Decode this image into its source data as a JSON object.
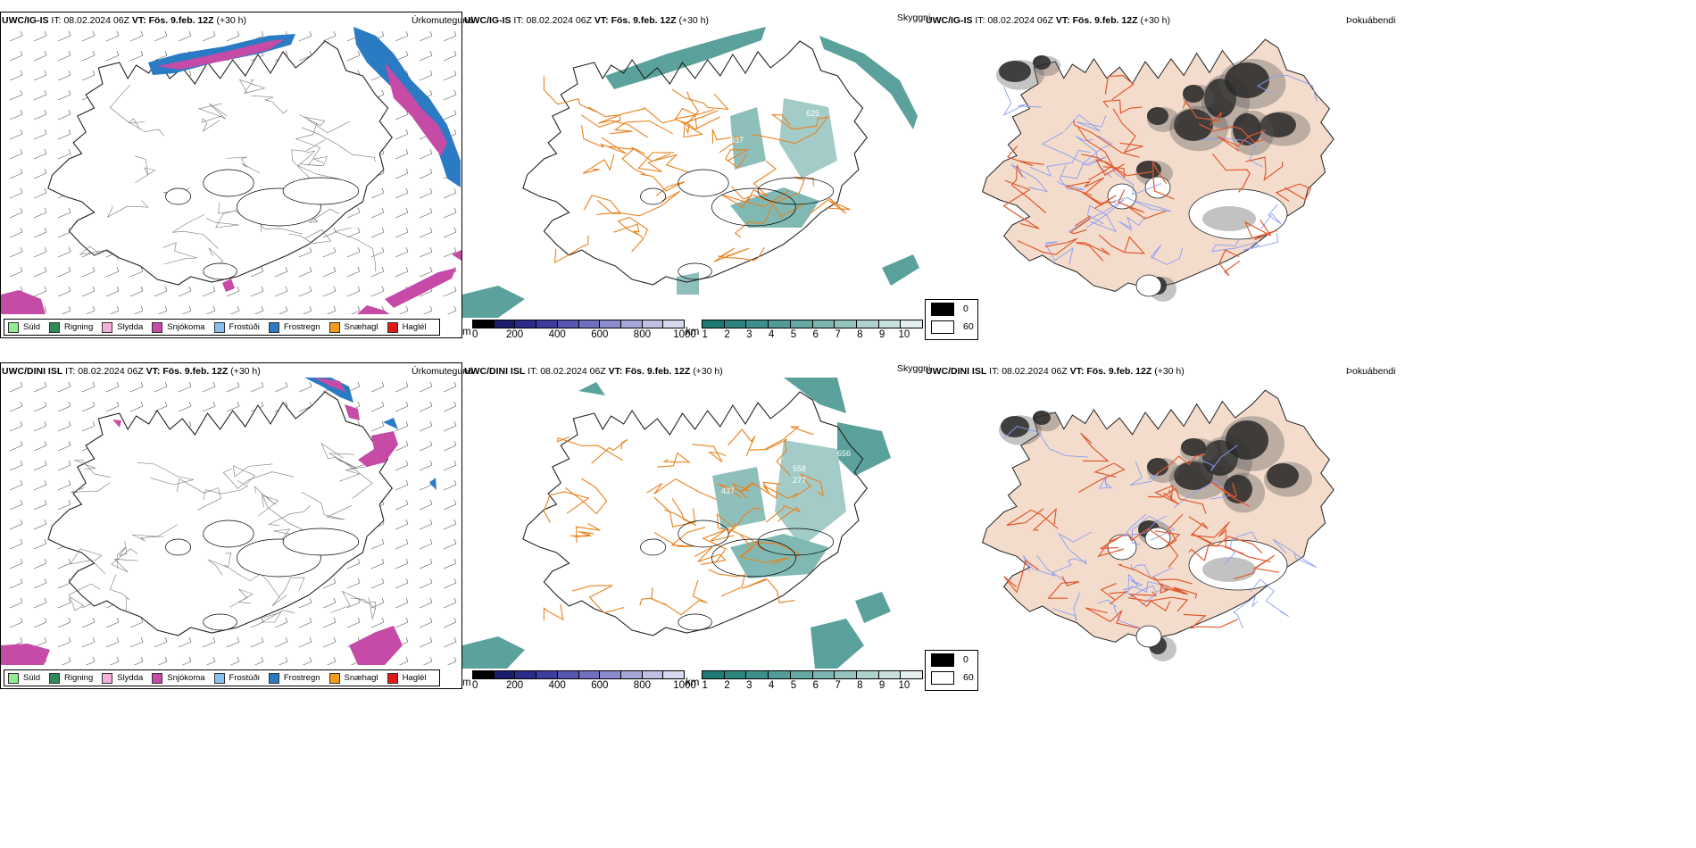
{
  "rows": [
    {
      "model": "UWC/IG-IS",
      "it_label": "IT:",
      "it_value": "08.02.2024 06Z",
      "vt_label": "VT:",
      "vt_value": "Fös. 9.feb. 12Z",
      "offset": "(+30 h)"
    },
    {
      "model": "UWC/DINI ISL",
      "it_label": "IT:",
      "it_value": "08.02.2024 06Z",
      "vt_label": "VT:",
      "vt_value": "Fös. 9.feb. 12Z",
      "offset": "(+30 h)"
    }
  ],
  "panel_titles": {
    "precip": "Úrkomutegund",
    "cloud": "Skyggni",
    "dew": "Þokuábendi"
  },
  "precip_legend": [
    {
      "label": "Súld",
      "color": "#90ee90"
    },
    {
      "label": "Rigning",
      "color": "#2e8b57"
    },
    {
      "label": "Slydda",
      "color": "#f4b0d8"
    },
    {
      "label": "Snjókoma",
      "color": "#c54ba6"
    },
    {
      "label": "Frostúði",
      "color": "#87bff0"
    },
    {
      "label": "Frostregn",
      "color": "#2a7bc4"
    },
    {
      "label": "Snæhagl",
      "color": "#f39c1e"
    },
    {
      "label": "Haglél",
      "color": "#e01818"
    }
  ],
  "height_bar": {
    "unit": "m",
    "ticks": [
      "0",
      "200",
      "400",
      "600",
      "800",
      "1000"
    ],
    "colors": [
      "#000000",
      "#1c1c6e",
      "#2b2b8a",
      "#3d3da0",
      "#5656b0",
      "#7070c0",
      "#8c8ccc",
      "#a6a6d8",
      "#c0c0e4",
      "#d8d8ee"
    ]
  },
  "vis_bar": {
    "unit": "km",
    "ticks": [
      "1",
      "2",
      "3",
      "4",
      "5",
      "6",
      "7",
      "8",
      "9",
      "10"
    ],
    "colors": [
      "#1e7a74",
      "#2e8580",
      "#3e918b",
      "#519c97",
      "#66a8a3",
      "#7cb5b0",
      "#94c3be",
      "#aed1cd",
      "#c8e0dd",
      "#e2efee"
    ]
  },
  "dew_legend": [
    {
      "label": "0",
      "color": "#000000"
    },
    {
      "label": "60",
      "color": "#ffffff"
    }
  ],
  "map_labels": {
    "row1": [
      "537",
      "625"
    ],
    "row2": [
      "437",
      "558",
      "277",
      "656"
    ]
  },
  "colors": {
    "snow": "#c54ba6",
    "freezing_rain": "#2a7bc4",
    "vis": "#3e918b",
    "roads": "#e8821e",
    "roads_dew": "#e05a30",
    "land_dew": "#f3dccb",
    "rivers": "#8a9ef5"
  }
}
